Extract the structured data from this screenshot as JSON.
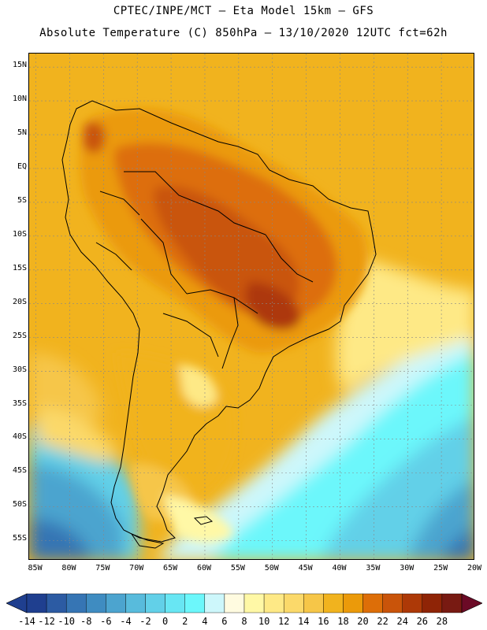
{
  "header": {
    "line1": "CPTEC/INPE/MCT –  Eta Model 15km – GFS",
    "line2": "Absolute Temperature (C) 850hPa – 13/10/2020 12UTC fct=62h"
  },
  "map": {
    "lat_labels": [
      "15N",
      "10N",
      "5N",
      "EQ",
      "5S",
      "10S",
      "15S",
      "20S",
      "25S",
      "30S",
      "35S",
      "40S",
      "45S",
      "50S",
      "55S"
    ],
    "lon_labels": [
      "85W",
      "80W",
      "75W",
      "70W",
      "65W",
      "60W",
      "55W",
      "50W",
      "45W",
      "40W",
      "35W",
      "30W",
      "25W",
      "20W"
    ],
    "lat_range": [
      17,
      -58
    ],
    "lon_range": [
      -86,
      -20
    ],
    "land_outline": "South America",
    "regions": [
      {
        "region": "central Brazil interior",
        "temperature_c": 24
      },
      {
        "region": "northern South America",
        "temperature_c": 20
      },
      {
        "region": "tropical Atlantic",
        "temperature_c": 18
      },
      {
        "region": "southern Brazil / Uruguay",
        "temperature_c": 14
      },
      {
        "region": "Patagonia",
        "temperature_c": 8
      },
      {
        "region": "southeast Pacific",
        "temperature_c": 0
      },
      {
        "region": "far southern ocean",
        "temperature_c": -8
      }
    ]
  },
  "colorbar": {
    "values": [
      -14,
      -12,
      -10,
      -8,
      -6,
      -4,
      -2,
      0,
      2,
      4,
      6,
      8,
      10,
      12,
      14,
      16,
      18,
      20,
      22,
      24,
      26,
      28
    ],
    "colors": [
      "#1f3f8f",
      "#2c5ba3",
      "#3675b4",
      "#3f8cc1",
      "#4ca4cf",
      "#58bbdc",
      "#62d0e8",
      "#68e6f3",
      "#6cf7fb",
      "#cdf7fb",
      "#fffbe0",
      "#fff8a6",
      "#fee986",
      "#fbd96a",
      "#f6c648",
      "#f1b31e",
      "#eb9a0a",
      "#dd6e08",
      "#c9540a",
      "#ad3907",
      "#8f2406",
      "#781a12"
    ],
    "under_color": "#1f3f8f",
    "over_color": "#6b0a26"
  }
}
